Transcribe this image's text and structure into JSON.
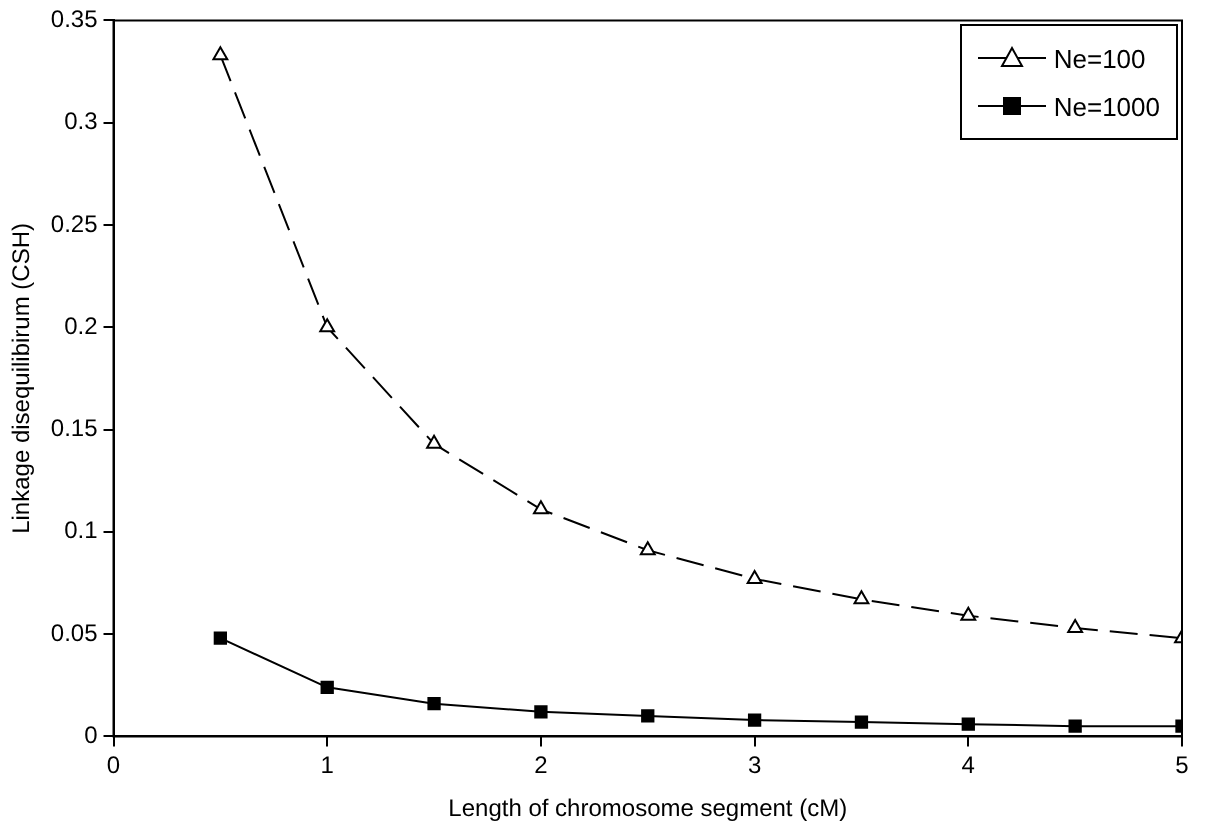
{
  "chart_data": {
    "type": "line",
    "xlabel": "Length of chromosome segment (cM)",
    "ylabel": "Linkage disequilibirum (CSH)",
    "xlim": [
      0,
      5
    ],
    "xticks": [
      0,
      1,
      2,
      3,
      4,
      5
    ],
    "ylim": [
      0,
      0.35
    ],
    "yticks": [
      0,
      0.05,
      0.1,
      0.15,
      0.2,
      0.25,
      0.3,
      0.35
    ],
    "grid": false,
    "legend": "top right",
    "x": [
      0.5,
      1,
      1.5,
      2,
      2.5,
      3,
      3.5,
      4,
      4.5,
      5
    ],
    "series": [
      {
        "name": "Ne=100",
        "color": "#000000",
        "marker": "triangle",
        "line_style": "dashed",
        "values": [
          0.333,
          0.2,
          0.143,
          0.111,
          0.091,
          0.077,
          0.067,
          0.059,
          0.053,
          0.048
        ]
      },
      {
        "name": "Ne=1000",
        "color": "#000000",
        "marker": "square",
        "line_style": "solid",
        "values": [
          0.048,
          0.024,
          0.016,
          0.012,
          0.01,
          0.008,
          0.007,
          0.006,
          0.005,
          0.005
        ]
      }
    ]
  }
}
